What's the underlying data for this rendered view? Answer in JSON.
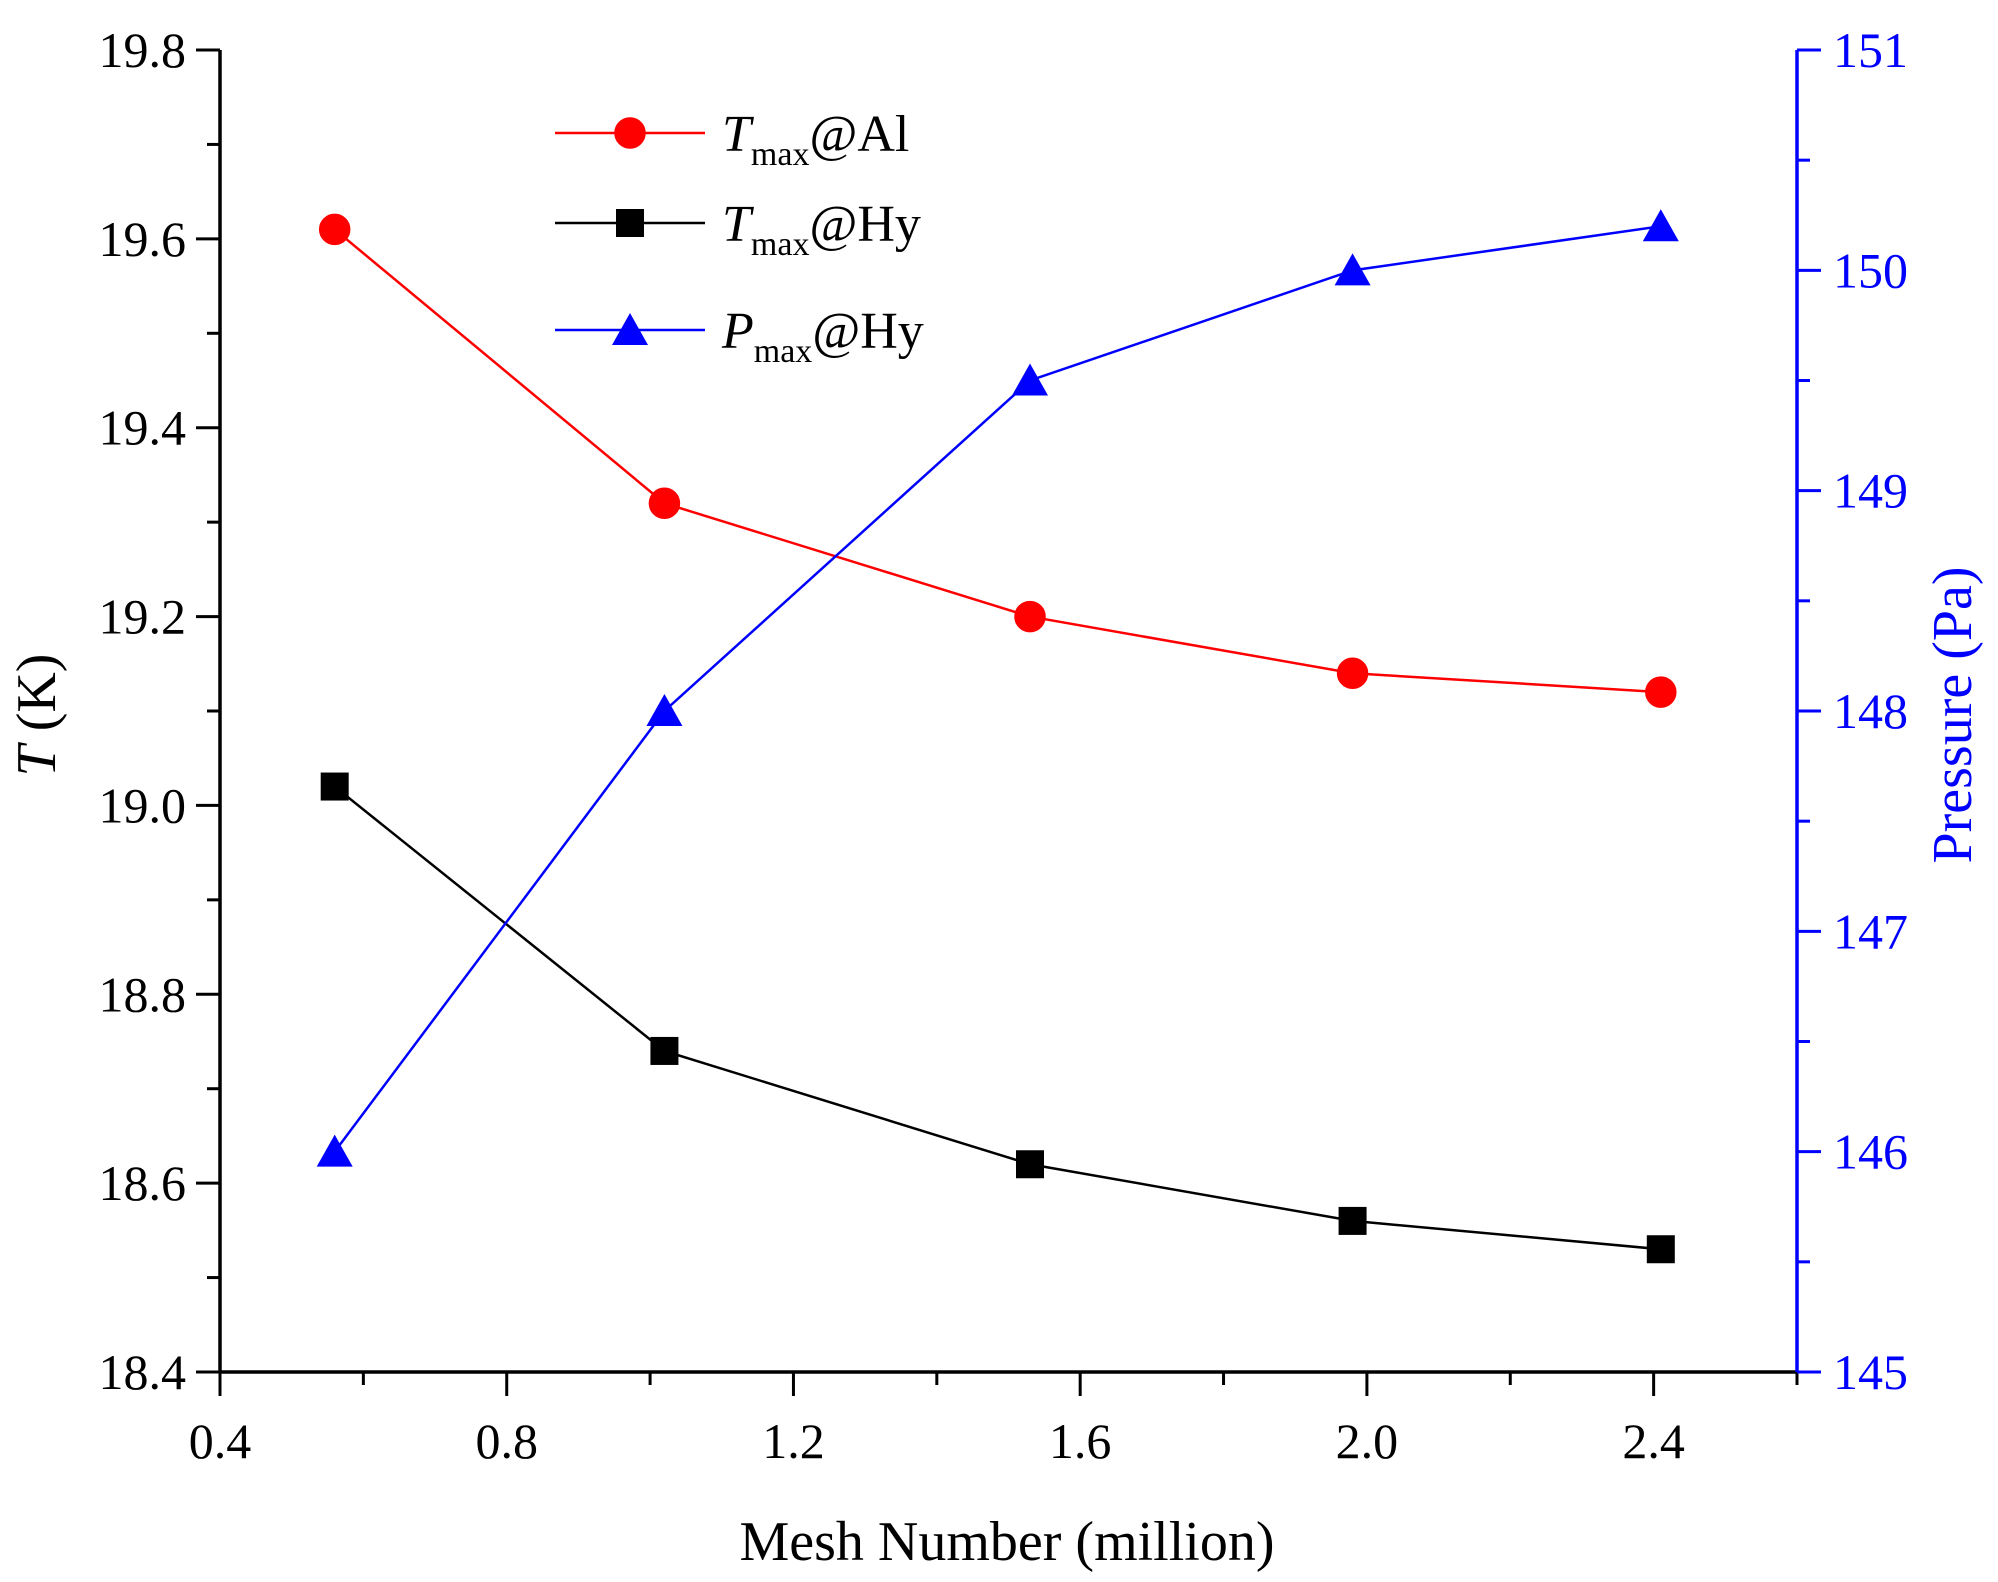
{
  "chart_data": {
    "type": "line",
    "title": "",
    "xlabel": "Mesh Number (million)",
    "ylabel_left": {
      "italic": "T",
      "rest": " (K)"
    },
    "ylabel_right": "Pressure (Pa)",
    "xlim": [
      0.4,
      2.6
    ],
    "ylim_left": [
      18.4,
      19.8
    ],
    "ylim_right": [
      145,
      151
    ],
    "x_ticks": [
      {
        "value": 0.4,
        "label": "0.4"
      },
      {
        "value": 0.8,
        "label": "0.8"
      },
      {
        "value": 1.2,
        "label": "1.2"
      },
      {
        "value": 1.6,
        "label": "1.6"
      },
      {
        "value": 2.0,
        "label": "2.0"
      },
      {
        "value": 2.4,
        "label": "2.4"
      }
    ],
    "y_left_ticks": [
      {
        "value": 18.4,
        "label": "18.4"
      },
      {
        "value": 18.6,
        "label": "18.6"
      },
      {
        "value": 18.8,
        "label": "18.8"
      },
      {
        "value": 19.0,
        "label": "19.0"
      },
      {
        "value": 19.2,
        "label": "19.2"
      },
      {
        "value": 19.4,
        "label": "19.4"
      },
      {
        "value": 19.6,
        "label": "19.6"
      },
      {
        "value": 19.8,
        "label": "19.8"
      }
    ],
    "y_right_ticks": [
      {
        "value": 145,
        "label": "145"
      },
      {
        "value": 146,
        "label": "146"
      },
      {
        "value": 147,
        "label": "147"
      },
      {
        "value": 148,
        "label": "148"
      },
      {
        "value": 149,
        "label": "149"
      },
      {
        "value": 150,
        "label": "150"
      },
      {
        "value": 151,
        "label": "151"
      }
    ],
    "legend_position": "top-center",
    "series": [
      {
        "name": "Tmax@Al",
        "legend": {
          "main": "T",
          "sub": "max",
          "suffix": "@Al"
        },
        "axis": "left",
        "marker": "circle",
        "color": "#ff0000",
        "x": [
          0.56,
          1.02,
          1.53,
          1.98,
          2.41
        ],
        "values": [
          19.61,
          19.32,
          19.2,
          19.14,
          19.12
        ]
      },
      {
        "name": "Tmax@Hy",
        "legend": {
          "main": "T",
          "sub": "max",
          "suffix": "@Hy"
        },
        "axis": "left",
        "marker": "square",
        "color": "#000000",
        "x": [
          0.56,
          1.02,
          1.53,
          1.98,
          2.41
        ],
        "values": [
          19.02,
          18.74,
          18.62,
          18.56,
          18.53
        ]
      },
      {
        "name": "Pmax@Hy",
        "legend": {
          "main": "P",
          "sub": "max",
          "suffix": "@Hy"
        },
        "axis": "right",
        "marker": "triangle",
        "color": "#0000ff",
        "x": [
          0.56,
          1.02,
          1.53,
          1.98,
          2.41
        ],
        "values": [
          146.0,
          148.0,
          149.5,
          150.0,
          150.2
        ]
      }
    ],
    "colors": {
      "axis_left": "#000000",
      "axis_right": "#0000ff"
    }
  }
}
